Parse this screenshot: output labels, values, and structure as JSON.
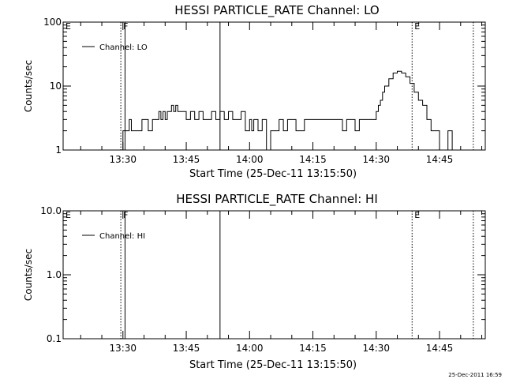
{
  "chart_data": [
    {
      "type": "line",
      "title": "HESSI PARTICLE_RATE Channel: LO",
      "xlabel": "Start Time (25-Dec-11 13:15:50)",
      "ylabel": "Counts/sec",
      "yscale": "log",
      "ylim": [
        1,
        100
      ],
      "yticks": [
        1,
        10,
        100
      ],
      "ytick_labels": [
        "1",
        "10",
        "100"
      ],
      "xlim": [
        "13:15:50",
        "14:55:50"
      ],
      "xticks": [
        "13:30",
        "13:45",
        "14:00",
        "14:15",
        "14:30",
        "14:45"
      ],
      "legend": {
        "label": "Channel: LO",
        "position": "top-left"
      },
      "markers": [
        {
          "label": "E",
          "time": "13:15:50",
          "style": "none"
        },
        {
          "label": "F",
          "time": "13:29:30",
          "style": "dotted"
        },
        {
          "label": "",
          "time": "13:30:30",
          "style": "solid"
        },
        {
          "label": "",
          "time": "13:53:00",
          "style": "solid"
        },
        {
          "label": "E",
          "time": "14:38:30",
          "style": "dotted"
        },
        {
          "label": "",
          "time": "14:53:00",
          "style": "dotted"
        }
      ],
      "series": [
        {
          "name": "Channel: LO",
          "x": [
            "13:29:30",
            "13:30:00",
            "13:31:00",
            "13:31:30",
            "13:32:00",
            "13:33:00",
            "13:34:00",
            "13:34:30",
            "13:35:00",
            "13:36:00",
            "13:37:00",
            "13:37:30",
            "13:38:00",
            "13:38:30",
            "13:39:00",
            "13:39:30",
            "13:40:00",
            "13:40:30",
            "13:41:00",
            "13:41:30",
            "13:42:00",
            "13:42:30",
            "13:43:00",
            "13:43:30",
            "13:44:00",
            "13:45:00",
            "13:46:00",
            "13:47:00",
            "13:48:00",
            "13:49:00",
            "13:50:00",
            "13:51:00",
            "13:52:00",
            "13:53:00",
            "13:54:00",
            "13:55:00",
            "13:56:00",
            "13:57:00",
            "13:58:00",
            "13:59:00",
            "14:00:00",
            "14:00:30",
            "14:01:00",
            "14:02:00",
            "14:03:00",
            "14:04:00",
            "14:05:00",
            "14:06:00",
            "14:07:00",
            "14:08:00",
            "14:09:00",
            "14:10:00",
            "14:11:00",
            "14:12:00",
            "14:13:00",
            "14:14:00",
            "14:15:00",
            "14:16:00",
            "14:17:00",
            "14:18:00",
            "14:19:00",
            "14:20:00",
            "14:21:00",
            "14:22:00",
            "14:23:00",
            "14:24:00",
            "14:25:00",
            "14:26:00",
            "14:27:00",
            "14:28:00",
            "14:29:00",
            "14:30:00",
            "14:30:30",
            "14:31:00",
            "14:31:30",
            "14:32:00",
            "14:33:00",
            "14:34:00",
            "14:35:00",
            "14:36:00",
            "14:37:00",
            "14:38:00",
            "14:39:00",
            "14:40:00",
            "14:41:00",
            "14:42:00",
            "14:43:00",
            "14:44:00",
            "14:44:30",
            "14:45:00",
            "14:46:00",
            "14:47:00",
            "14:48:00",
            "14:49:00",
            "14:50:00",
            "14:51:00",
            "14:52:00"
          ],
          "values": [
            1,
            2,
            2,
            3,
            2,
            2,
            2,
            3,
            3,
            2,
            3,
            3,
            3,
            4,
            3,
            4,
            3,
            4,
            4,
            5,
            4,
            5,
            4,
            4,
            4,
            3,
            4,
            3,
            4,
            3,
            3,
            4,
            3,
            4,
            3,
            4,
            3,
            3,
            4,
            2,
            3,
            2,
            3,
            2,
            3,
            1,
            2,
            2,
            3,
            2,
            3,
            3,
            2,
            2,
            3,
            3,
            3,
            3,
            3,
            3,
            3,
            3,
            3,
            2,
            3,
            3,
            2,
            3,
            3,
            3,
            3,
            4,
            5,
            6,
            8,
            10,
            13,
            16,
            17,
            16,
            14,
            11,
            8,
            6,
            5,
            3,
            2,
            2,
            2,
            1,
            1,
            2,
            1,
            1,
            1,
            1,
            1
          ]
        }
      ]
    },
    {
      "type": "line",
      "title": "HESSI PARTICLE_RATE Channel: HI",
      "xlabel": "Start Time (25-Dec-11 13:15:50)",
      "ylabel": "Counts/sec",
      "yscale": "log",
      "ylim": [
        0.1,
        10
      ],
      "yticks": [
        0.1,
        1,
        10
      ],
      "ytick_labels": [
        "0.1",
        "1.0",
        "10.0"
      ],
      "xlim": [
        "13:15:50",
        "14:55:50"
      ],
      "xticks": [
        "13:30",
        "13:45",
        "14:00",
        "14:15",
        "14:30",
        "14:45"
      ],
      "legend": {
        "label": "Channel: HI",
        "position": "top-left"
      },
      "markers": [
        {
          "label": "E",
          "time": "13:15:50",
          "style": "none"
        },
        {
          "label": "F",
          "time": "13:29:30",
          "style": "dotted"
        },
        {
          "label": "",
          "time": "13:30:30",
          "style": "solid"
        },
        {
          "label": "",
          "time": "13:53:00",
          "style": "solid"
        },
        {
          "label": "E",
          "time": "14:38:30",
          "style": "dotted"
        },
        {
          "label": "",
          "time": "14:53:00",
          "style": "dotted"
        }
      ],
      "series": [
        {
          "name": "Channel: HI",
          "x": [],
          "values": []
        }
      ]
    }
  ],
  "footer": {
    "timestamp": "25-Dec-2011 16:59"
  }
}
